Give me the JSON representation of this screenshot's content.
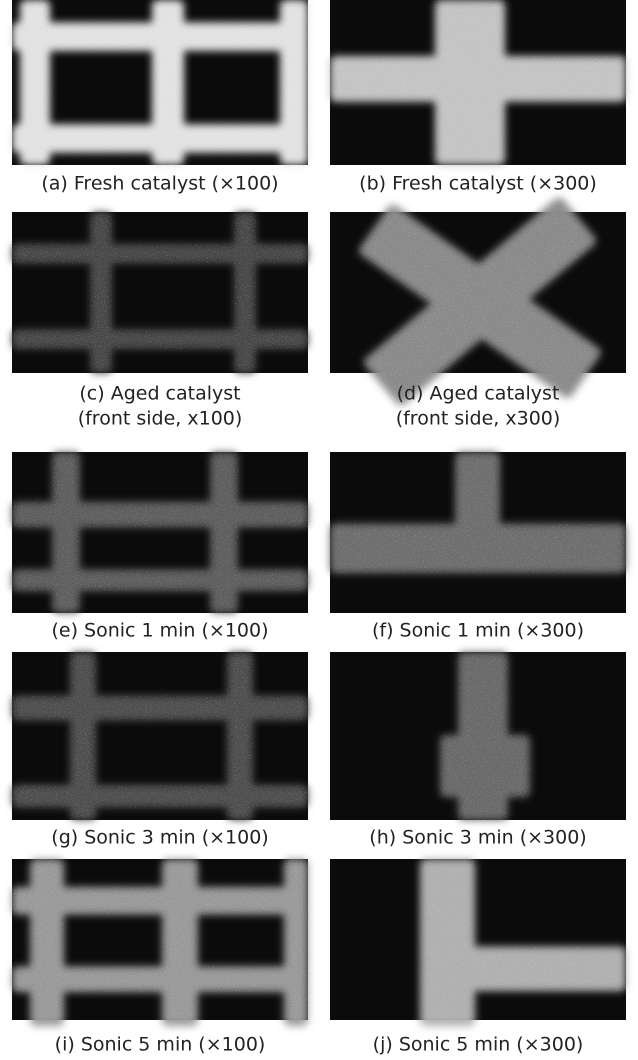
{
  "panels": [
    {
      "caption": [
        "(a) Fresh catalyst (×100)"
      ]
    },
    {
      "caption": [
        "(b) Fresh catalyst (×300)"
      ]
    },
    {
      "caption": [
        "(c) Aged catalyst",
        "(front side, x100)"
      ]
    },
    {
      "caption": [
        "(d) Aged catalyst",
        "(front side, x300)"
      ]
    },
    {
      "caption": [
        "(e) Sonic 1 min (×100)"
      ]
    },
    {
      "caption": [
        "(f) Sonic 1 min (×300)"
      ]
    },
    {
      "caption": [
        "(g) Sonic 3 min (×100)"
      ]
    },
    {
      "caption": [
        "(h) Sonic 3 min (×300)"
      ]
    },
    {
      "caption": [
        "(i) Sonic 5 min (×100)"
      ]
    },
    {
      "caption": [
        "(j) Sonic 5 min (×300)"
      ]
    }
  ]
}
